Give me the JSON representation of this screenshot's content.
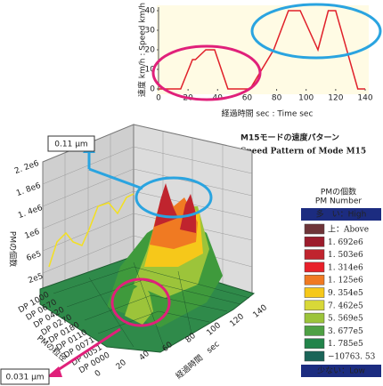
{
  "chart_data": {
    "type": "line",
    "x_label": "経過時間 sec : Time sec",
    "y_label": "速度 km/h : Speed km/h",
    "series": [
      {
        "name": "Speed",
        "color": "#e0202a",
        "x": [
          0,
          15,
          23,
          25,
          32,
          38,
          47,
          62,
          78,
          88,
          96,
          108,
          115,
          120,
          135,
          140
        ],
        "values": [
          0,
          0,
          15,
          15,
          20,
          20,
          0,
          0,
          20,
          40,
          40,
          20,
          40,
          40,
          0,
          0
        ]
      }
    ],
    "xlim": [
      0,
      140
    ],
    "xticks": [
      0,
      20,
      40,
      60,
      80,
      100,
      120,
      140
    ],
    "ylim": [
      0,
      40
    ],
    "yticks": [
      0,
      10,
      20,
      30,
      40
    ],
    "grid": false
  },
  "title": {
    "ja": "M15モードの速度パターン",
    "en": "Speed Pattern of Mode M15"
  },
  "surface_plot": {
    "z_axis_label": "PMの個数",
    "z_labels": [
      "2. 2e6",
      "1. 8e6",
      "1. 4e6",
      "1e6",
      "6e5",
      "2e5"
    ],
    "size_axis_label": "PMの粒径",
    "size_labels": [
      "DP 1000",
      "DP 0670",
      "DP 0420",
      "DP 0270",
      "DP 0180",
      "DP 0110",
      "DP 0071",
      "DP 0051",
      "DP 0000"
    ],
    "time_axis_label": "経過時間　sec",
    "time_labels": [
      "0",
      "20",
      "40",
      "60",
      "80",
      "100",
      "120",
      "140"
    ],
    "callout_large": "0.11 μm",
    "callout_small": "0.031 μm"
  },
  "legend": {
    "title": "PMの個数",
    "subtitle": "PM Number",
    "high": "多　い：High",
    "low": "少ない：Low",
    "items": [
      {
        "label": "上：Above",
        "color": "#6e3438"
      },
      {
        "label": "1. 692e6",
        "color": "#9c1c2c"
      },
      {
        "label": "1. 503e6",
        "color": "#c0242e"
      },
      {
        "label": "1. 314e6",
        "color": "#e8202a"
      },
      {
        "label": "1. 125e6",
        "color": "#f07a22"
      },
      {
        "label": "9. 354e5",
        "color": "#f6c81a"
      },
      {
        "label": "7. 462e5",
        "color": "#d8d838"
      },
      {
        "label": "5. 569e5",
        "color": "#9cc43a"
      },
      {
        "label": "3. 677e5",
        "color": "#4ea044"
      },
      {
        "label": "1. 785e5",
        "color": "#22844a"
      },
      {
        "label": "−10763. 53",
        "color": "#1a6458"
      }
    ]
  }
}
